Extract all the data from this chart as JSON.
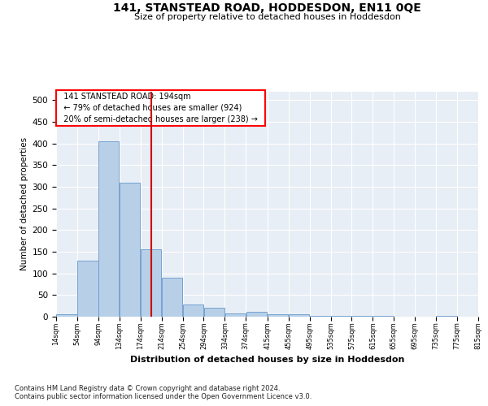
{
  "title": "141, STANSTEAD ROAD, HODDESDON, EN11 0QE",
  "subtitle": "Size of property relative to detached houses in Hoddesdon",
  "xlabel": "Distribution of detached houses by size in Hoddesdon",
  "ylabel": "Number of detached properties",
  "footer_line1": "Contains HM Land Registry data © Crown copyright and database right 2024.",
  "footer_line2": "Contains public sector information licensed under the Open Government Licence v3.0.",
  "annotation_line1": "141 STANSTEAD ROAD: 194sqm",
  "annotation_line2": "← 79% of detached houses are smaller (924)",
  "annotation_line3": "20% of semi-detached houses are larger (238) →",
  "property_size": 194,
  "bar_color": "#b8cfe8",
  "bar_edge_color": "#6699cc",
  "vline_color": "#cc0000",
  "bin_edges": [
    14,
    54,
    94,
    134,
    174,
    214,
    254,
    294,
    334,
    374,
    415,
    455,
    495,
    535,
    575,
    615,
    655,
    695,
    735,
    775,
    815
  ],
  "bar_heights": [
    5,
    130,
    405,
    310,
    155,
    90,
    28,
    20,
    8,
    11,
    5,
    6,
    2,
    1,
    1,
    1,
    0,
    0,
    1,
    0
  ],
  "ylim": [
    0,
    520
  ],
  "yticks": [
    0,
    50,
    100,
    150,
    200,
    250,
    300,
    350,
    400,
    450,
    500
  ],
  "background_color": "#ffffff",
  "plot_bg_color": "#e8eef5",
  "grid_color": "#ffffff"
}
